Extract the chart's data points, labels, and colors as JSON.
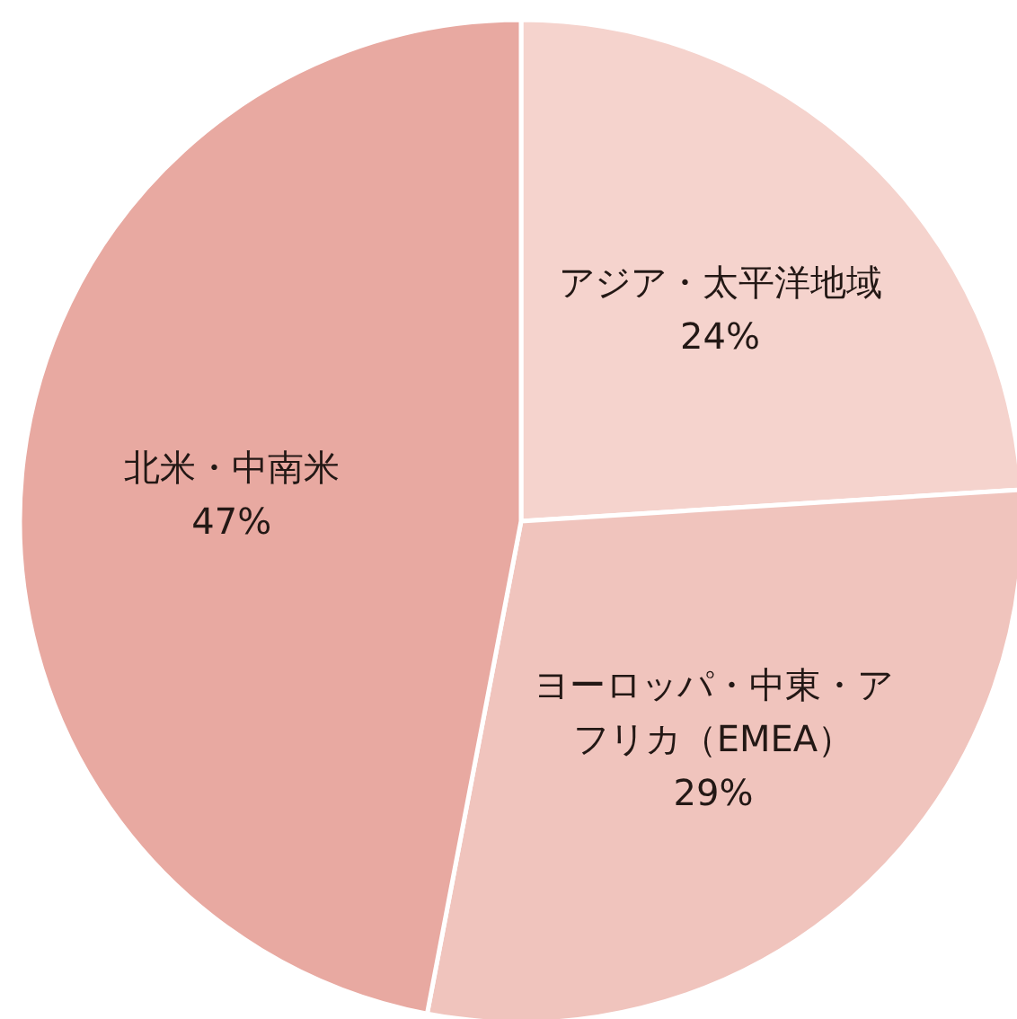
{
  "chart_data": {
    "type": "pie",
    "categories": [
      "アジア・太平洋地域",
      "ヨーロッパ・中東・アフリカ（EMEA）",
      "北米・中南米"
    ],
    "values": [
      24,
      29,
      47
    ],
    "value_labels": [
      "24%",
      "29%",
      "47%"
    ],
    "colors": [
      "#f5d3cd",
      "#f0c4bd",
      "#e8a9a1"
    ]
  }
}
